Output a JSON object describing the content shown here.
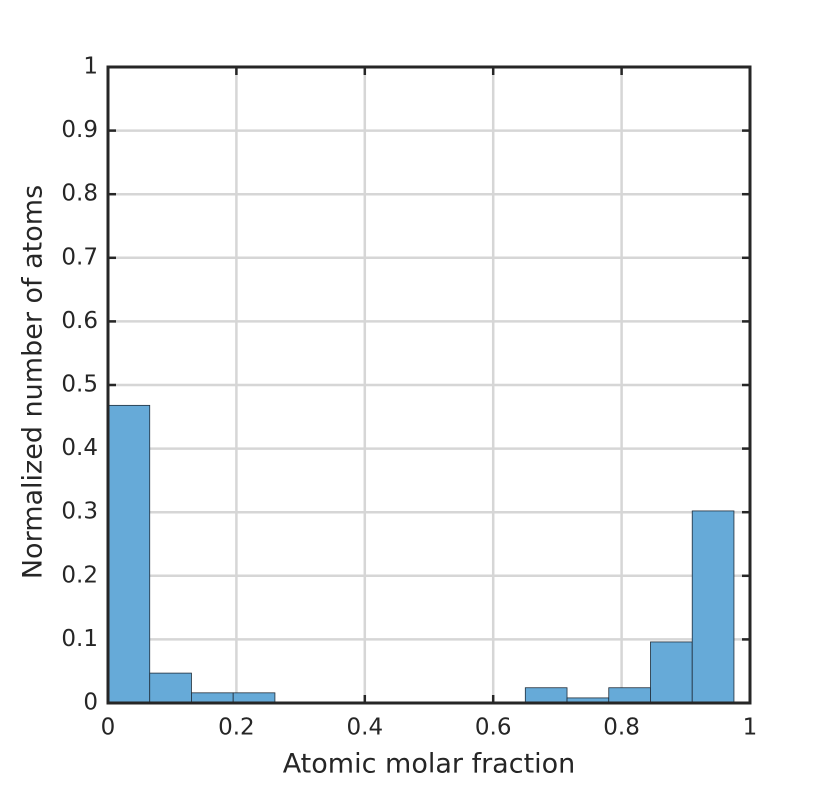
{
  "chart_data": {
    "type": "histogram",
    "xlabel": "Atomic molar fraction",
    "ylabel": "Normalized number of atoms",
    "bins": [
      0,
      0.065,
      0.13,
      0.195,
      0.26,
      0.325,
      0.39,
      0.455,
      0.52,
      0.585,
      0.65,
      0.715,
      0.78,
      0.845,
      0.91,
      0.975
    ],
    "values": [
      0.468,
      0.047,
      0.016,
      0.016,
      0,
      0,
      0,
      0,
      0,
      0,
      0.024,
      0.008,
      0.024,
      0.096,
      0.302
    ],
    "color": "#66aad8",
    "edgecolor": "#1f2d3a",
    "xlim": [
      0,
      1
    ],
    "xticks": [
      0,
      0.2,
      0.4,
      0.6,
      0.8,
      1
    ],
    "ylim": [
      0,
      1
    ],
    "yticks": [
      0,
      0.1,
      0.2,
      0.3,
      0.4,
      0.5,
      0.6,
      0.7,
      0.8,
      0.9,
      1
    ],
    "grid": true
  }
}
